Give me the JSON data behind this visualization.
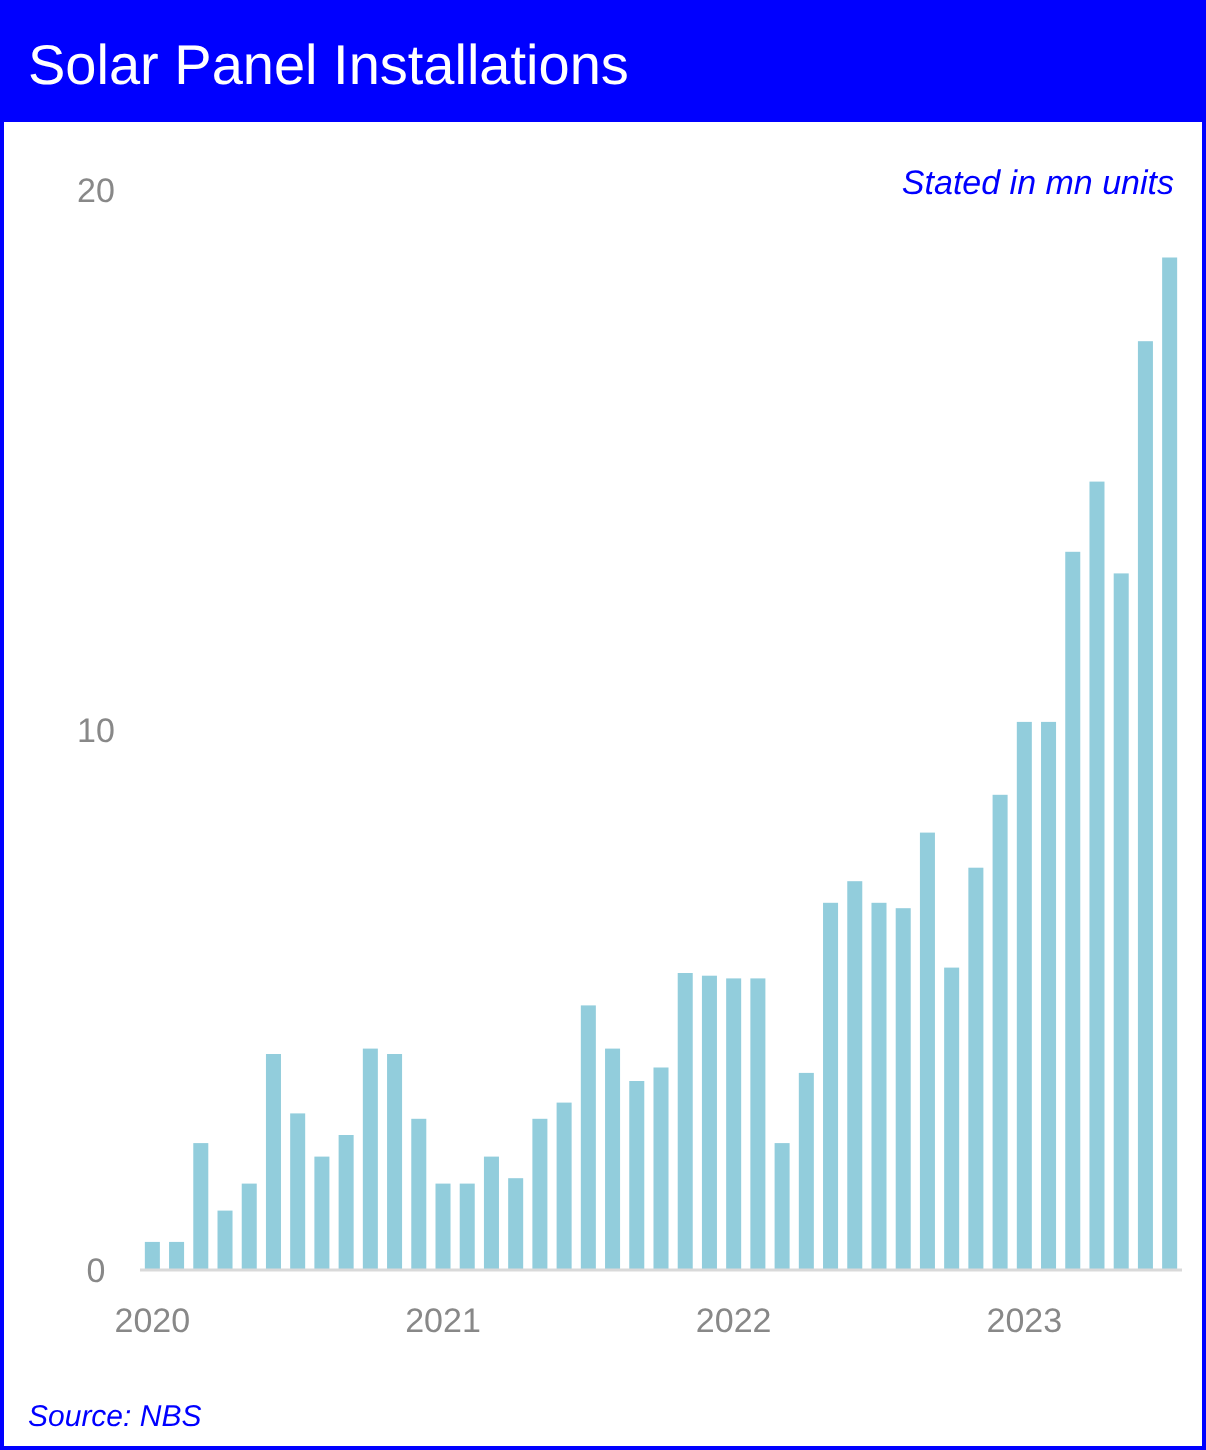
{
  "chart_data": {
    "type": "bar",
    "title": "Solar Panel Installations",
    "categories": [
      "2020",
      null,
      null,
      null,
      null,
      null,
      null,
      null,
      null,
      null,
      null,
      null,
      "2021",
      null,
      null,
      null,
      null,
      null,
      null,
      null,
      null,
      null,
      null,
      null,
      "2022",
      null,
      null,
      null,
      null,
      null,
      null,
      null,
      null,
      null,
      null,
      null,
      "2023",
      null,
      null,
      null,
      null,
      null,
      null
    ],
    "values": [
      0.52,
      0.52,
      2.35,
      1.1,
      1.6,
      4.0,
      2.9,
      2.1,
      2.5,
      4.1,
      4.0,
      2.8,
      1.6,
      1.6,
      2.1,
      1.7,
      2.8,
      3.1,
      4.9,
      4.1,
      3.5,
      3.75,
      5.5,
      5.45,
      5.4,
      5.4,
      2.35,
      3.65,
      6.8,
      7.2,
      6.8,
      6.7,
      8.1,
      5.6,
      7.45,
      8.8,
      10.15,
      10.15,
      13.3,
      14.6,
      12.9,
      17.2,
      18.75
    ],
    "color": "#92cddc",
    "ylim": [
      0,
      20
    ],
    "yticks": [
      0,
      10,
      20
    ],
    "grid": false,
    "annotations": [
      "Stated in mn units",
      "Source: NBS"
    ]
  }
}
